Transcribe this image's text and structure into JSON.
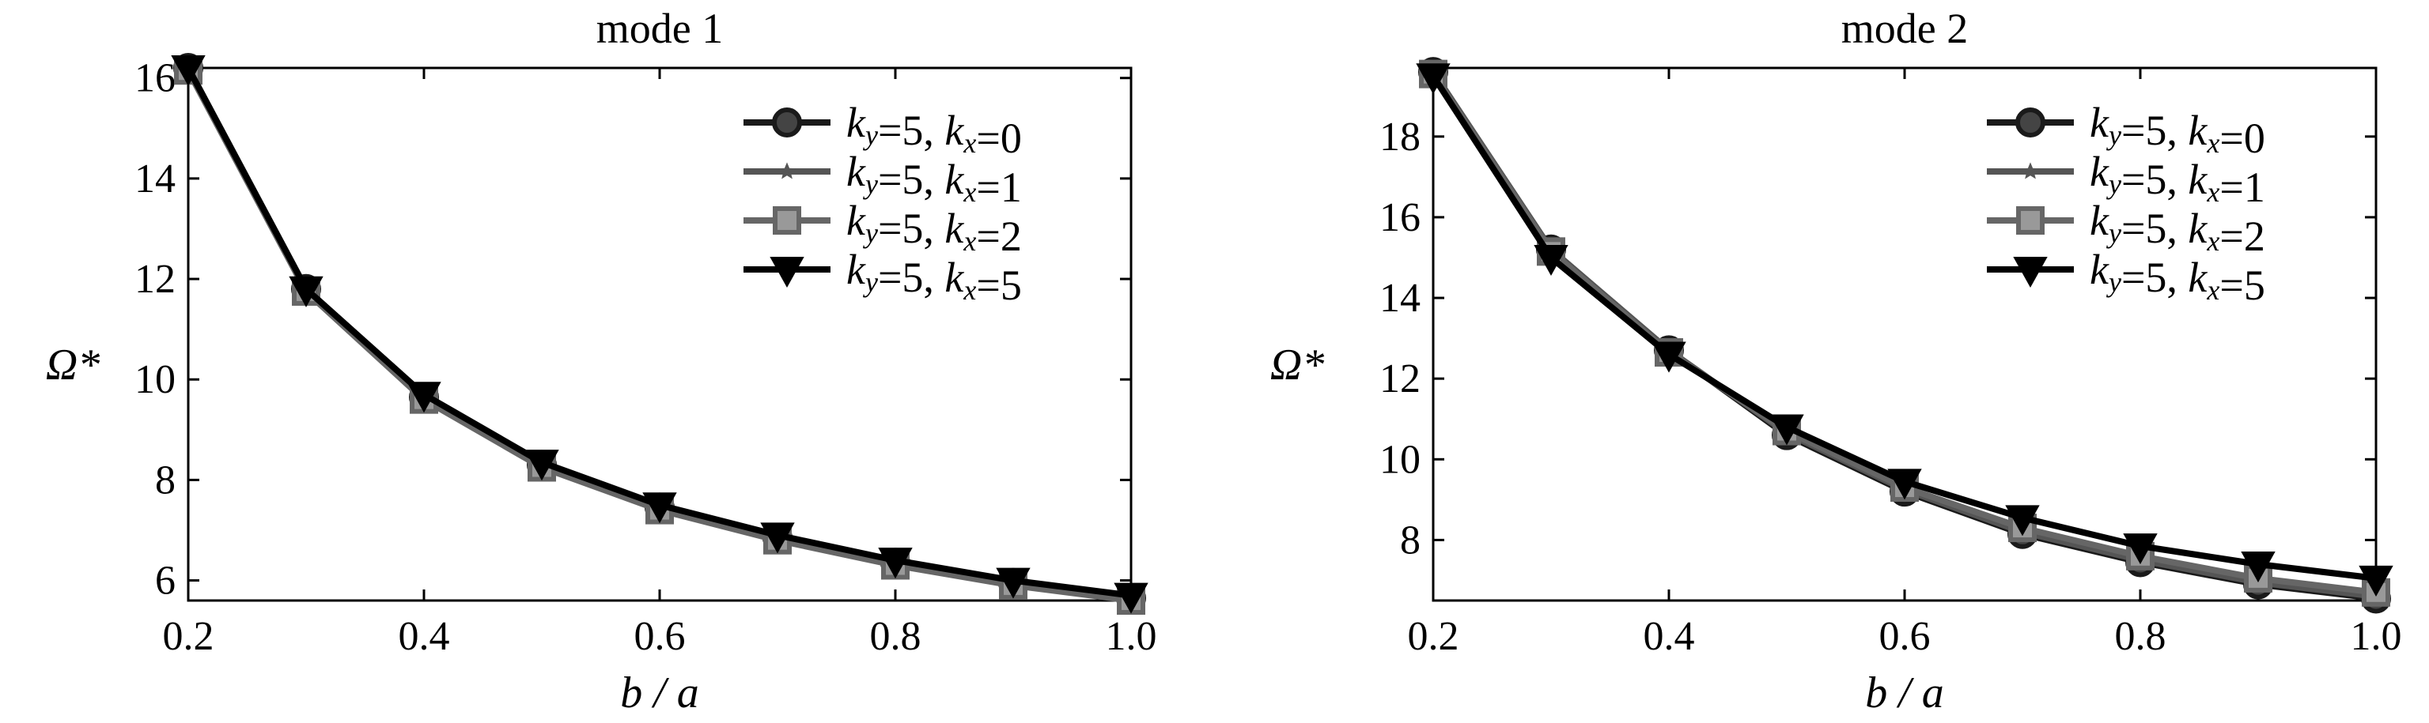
{
  "chart_data": [
    {
      "type": "line",
      "title": "mode 1",
      "xlabel": "b / a",
      "ylabel": "Ω*",
      "xlim": [
        0.2,
        1.0
      ],
      "ylim": [
        5.6,
        16.2
      ],
      "xticks": [
        "0.2",
        "0.4",
        "0.6",
        "0.8",
        "1.0"
      ],
      "yticks": [
        "6",
        "8",
        "10",
        "12",
        "14",
        "16"
      ],
      "legend_position": "top-right",
      "grid": false,
      "x": [
        0.2,
        0.3,
        0.4,
        0.5,
        0.6,
        0.7,
        0.8,
        0.9,
        1.0
      ],
      "series": [
        {
          "name": "k_y=5, k_x=0",
          "ky": "5",
          "kx": "0",
          "color": "#1a1a1a",
          "marker": "circle",
          "values": [
            16.2,
            11.8,
            9.65,
            8.3,
            7.45,
            6.85,
            6.35,
            5.95,
            5.65
          ]
        },
        {
          "name": "k_y=5, k_x=1",
          "ky": "5",
          "kx": "1",
          "color": "#555555",
          "marker": "star",
          "values": [
            16.2,
            11.8,
            9.65,
            8.3,
            7.45,
            6.85,
            6.35,
            5.95,
            5.65
          ]
        },
        {
          "name": "k_y=5, k_x=2",
          "ky": "5",
          "kx": "2",
          "color": "#666666",
          "marker": "square",
          "values": [
            16.15,
            11.75,
            9.6,
            8.25,
            7.4,
            6.8,
            6.3,
            5.9,
            5.6
          ]
        },
        {
          "name": "k_y=5, k_x=5",
          "ky": "5",
          "kx": "5",
          "color": "#000000",
          "marker": "triangle-down",
          "values": [
            16.2,
            11.8,
            9.7,
            8.35,
            7.5,
            6.9,
            6.4,
            6.0,
            5.7
          ]
        }
      ]
    },
    {
      "type": "line",
      "title": "mode 2",
      "xlabel": "b / a",
      "ylabel": "Ω*",
      "xlim": [
        0.2,
        1.0
      ],
      "ylim": [
        6.5,
        19.7
      ],
      "xticks": [
        "0.2",
        "0.4",
        "0.6",
        "0.8",
        "1.0"
      ],
      "yticks": [
        "8",
        "10",
        "12",
        "14",
        "16",
        "18"
      ],
      "legend_position": "top-right",
      "grid": false,
      "x": [
        0.2,
        0.3,
        0.4,
        0.5,
        0.6,
        0.7,
        0.8,
        0.9,
        1.0
      ],
      "series": [
        {
          "name": "k_y=5, k_x=0",
          "ky": "5",
          "kx": "0",
          "color": "#1a1a1a",
          "marker": "circle",
          "values": [
            19.6,
            15.2,
            12.7,
            10.6,
            9.2,
            8.15,
            7.45,
            6.9,
            6.55
          ]
        },
        {
          "name": "k_y=5, k_x=1",
          "ky": "5",
          "kx": "1",
          "color": "#555555",
          "marker": "star",
          "values": [
            19.6,
            15.2,
            12.7,
            10.65,
            9.25,
            8.2,
            7.5,
            6.95,
            6.6
          ]
        },
        {
          "name": "k_y=5, k_x=2",
          "ky": "5",
          "kx": "2",
          "color": "#666666",
          "marker": "square",
          "values": [
            19.55,
            15.15,
            12.65,
            10.7,
            9.3,
            8.3,
            7.6,
            7.05,
            6.7
          ]
        },
        {
          "name": "k_y=5, k_x=5",
          "ky": "5",
          "kx": "5",
          "color": "#000000",
          "marker": "triangle-down",
          "values": [
            19.5,
            15.0,
            12.6,
            10.8,
            9.45,
            8.55,
            7.85,
            7.4,
            7.05
          ]
        }
      ]
    }
  ]
}
